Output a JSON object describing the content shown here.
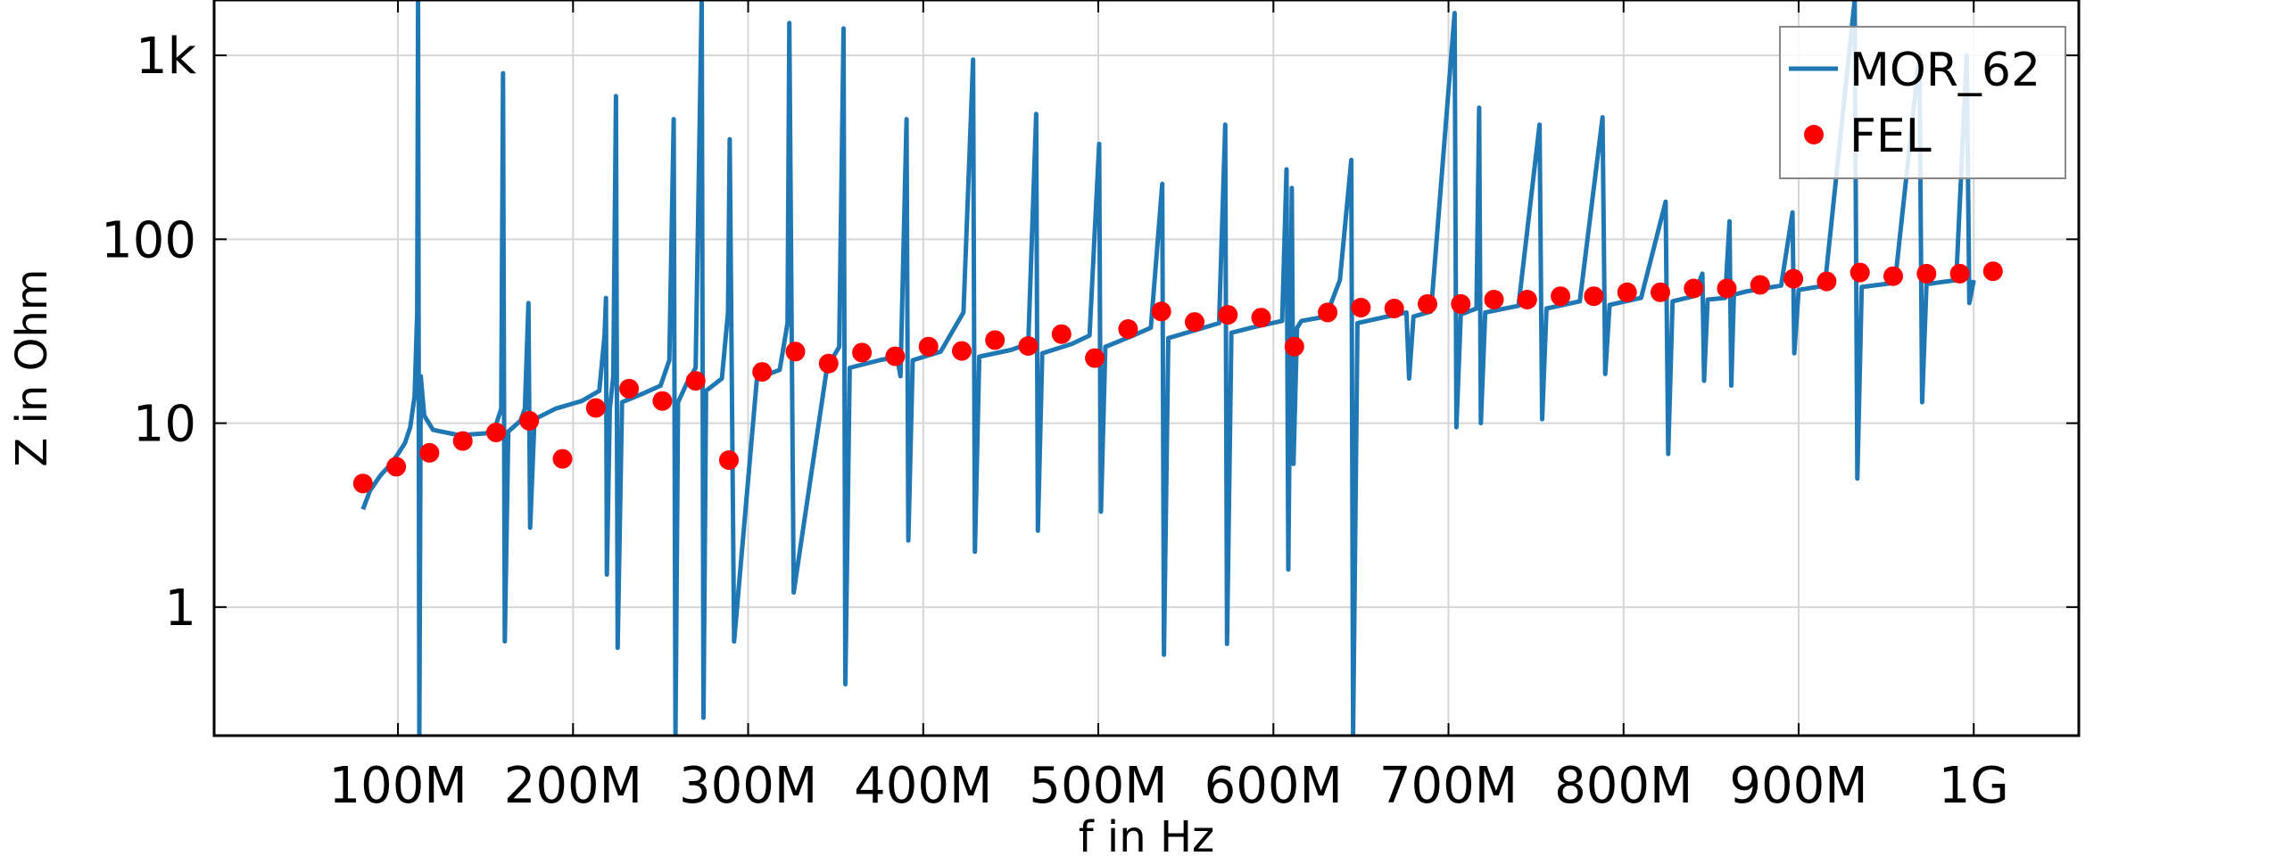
{
  "chart_data": {
    "type": "line",
    "xlabel": "f in Hz",
    "ylabel": "Z in Ohm",
    "x_scale": "linear",
    "y_scale": "log",
    "xlim": [
      -5000000,
      1060000000
    ],
    "ylim": [
      0.2,
      2000
    ],
    "grid": true,
    "legend_position": "top-right",
    "x_ticks": [
      {
        "value": 100000000,
        "label": "100M"
      },
      {
        "value": 200000000,
        "label": "200M"
      },
      {
        "value": 300000000,
        "label": "300M"
      },
      {
        "value": 400000000,
        "label": "400M"
      },
      {
        "value": 500000000,
        "label": "500M"
      },
      {
        "value": 600000000,
        "label": "600M"
      },
      {
        "value": 700000000,
        "label": "700M"
      },
      {
        "value": 800000000,
        "label": "800M"
      },
      {
        "value": 900000000,
        "label": "900M"
      },
      {
        "value": 1000000000,
        "label": "1G"
      }
    ],
    "y_ticks": [
      {
        "value": 1,
        "label": "1"
      },
      {
        "value": 10,
        "label": "10"
      },
      {
        "value": 100,
        "label": "100"
      },
      {
        "value": 1000,
        "label": "1k"
      }
    ],
    "series": [
      {
        "name": "MOR_62",
        "kind": "line",
        "color": "#1f77b4",
        "x": [
          80000000,
          84000000,
          90000000,
          96000000,
          100000000,
          104000000,
          107000000,
          109500000,
          111000000,
          111500000,
          112200000,
          113000000,
          115000000,
          120000000,
          135000000,
          150000000,
          155000000,
          159000000,
          160000000,
          161000000,
          163000000,
          170000000,
          172500000,
          174500000,
          175500000,
          178000000,
          190000000,
          205000000,
          215000000,
          218000000,
          218800000,
          219300000,
          221000000,
          223000000,
          224500000,
          225500000,
          228000000,
          240000000,
          250000000,
          255000000,
          257500000,
          258500000,
          260000000,
          265000000,
          270000000,
          273500000,
          274500000,
          276000000,
          285000000,
          288500000,
          289500000,
          292000000,
          305000000,
          318000000,
          322500000,
          323500000,
          326000000,
          345000000,
          352000000,
          354500000,
          355500000,
          358000000,
          375000000,
          385000000,
          387000000,
          390500000,
          391500000,
          394000000,
          410000000,
          423000000,
          428500000,
          429500000,
          432000000,
          450000000,
          460000000,
          464500000,
          465500000,
          468000000,
          485000000,
          495000000,
          500500000,
          501500000,
          504000000,
          520000000,
          530000000,
          536500000,
          537500000,
          540000000,
          560000000,
          569000000,
          572500000,
          573500000,
          576000000,
          590000000,
          605000000,
          607500000,
          608500000,
          610500000,
          611500000,
          613500000,
          616000000,
          630000000,
          638000000,
          644500000,
          645500000,
          648000000,
          665000000,
          676000000,
          677500000,
          680000000,
          690000000,
          703500000,
          704500000,
          707000000,
          716000000,
          717500000,
          718500000,
          721000000,
          740000000,
          752000000,
          753500000,
          756000000,
          775000000,
          788000000,
          789500000,
          792000000,
          810000000,
          824000000,
          825500000,
          828000000,
          840000000,
          845000000,
          846000000,
          848000000,
          858000000,
          860500000,
          861500000,
          863000000,
          870000000,
          880000000,
          890000000,
          896500000,
          897500000,
          900000000,
          915000000,
          932000000,
          933500000,
          936000000,
          955000000,
          969000000,
          970500000,
          973000000,
          990000000,
          996000000,
          997500000,
          1000000000
        ],
        "y": [
          3.4,
          4.3,
          5.2,
          6.0,
          6.8,
          7.8,
          9.5,
          14,
          40,
          2000,
          0.2,
          18,
          11,
          9.2,
          8.6,
          8.8,
          9.2,
          12,
          800,
          0.65,
          9,
          10.3,
          12,
          45,
          2.7,
          10.5,
          12,
          13.2,
          15,
          30,
          48,
          1.5,
          12,
          18,
          600,
          0.6,
          13,
          14.5,
          16,
          22,
          450,
          0.2,
          13,
          16.5,
          20,
          2000,
          0.25,
          15,
          17.5,
          40,
          350,
          0.65,
          17.5,
          19.5,
          35,
          1500,
          1.2,
          20,
          26,
          1400,
          0.38,
          20,
          22,
          23,
          18,
          450,
          2.3,
          22,
          24.5,
          40,
          950,
          2,
          23,
          25,
          27,
          480,
          2.6,
          24,
          27,
          30,
          330,
          3.3,
          26,
          30,
          33,
          200,
          0.55,
          29,
          33,
          35,
          420,
          0.63,
          31,
          33.5,
          36,
          240,
          1.6,
          190,
          6,
          33,
          36,
          38,
          60,
          270,
          0.2,
          35,
          38,
          40,
          17.5,
          38,
          40.5,
          1700,
          9.5,
          39,
          42,
          520,
          10,
          40,
          43.5,
          420,
          10.5,
          42,
          46,
          460,
          18.5,
          44,
          48,
          160,
          6.8,
          46,
          49,
          65,
          17,
          47,
          48,
          125,
          16,
          50,
          52,
          54,
          56,
          140,
          24,
          53,
          56,
          2000,
          5,
          55,
          58,
          1000,
          13,
          57,
          60,
          1000,
          45,
          60
        ]
      },
      {
        "name": "FEL",
        "kind": "scatter",
        "color": "#ff0000",
        "x": [
          80000000,
          99000000,
          118000000,
          137000000,
          156000000,
          175000000,
          194000000,
          213000000,
          232000000,
          251000000,
          270000000,
          289000000,
          308000000,
          327000000,
          346000000,
          365000000,
          384000000,
          403000000,
          422000000,
          441000000,
          460000000,
          479000000,
          498000000,
          517000000,
          536000000,
          555000000,
          574000000,
          593000000,
          612000000,
          631000000,
          650000000,
          669000000,
          688000000,
          707000000,
          726000000,
          745000000,
          764000000,
          783000000,
          802000000,
          821000000,
          840000000,
          859000000,
          878000000,
          897000000,
          916000000,
          935000000,
          954000000,
          973000000,
          992000000,
          1011000000
        ],
        "y": [
          4.7,
          5.8,
          6.9,
          8.0,
          8.9,
          10.3,
          6.4,
          12.1,
          15.4,
          13.2,
          17.0,
          6.3,
          19.0,
          24.5,
          21.1,
          24.2,
          23.1,
          26.1,
          24.7,
          28.3,
          26.3,
          30.5,
          22.6,
          32.5,
          40.5,
          35.5,
          38.8,
          37.5,
          26.1,
          40.0,
          42.5,
          42.0,
          44.5,
          44.5,
          47.0,
          47.0,
          49.0,
          49.0,
          51.5,
          51.5,
          54.0,
          54.0,
          56.5,
          61.0,
          59.0,
          66.0,
          63.0,
          65.0,
          65.0,
          67.0
        ]
      }
    ]
  }
}
